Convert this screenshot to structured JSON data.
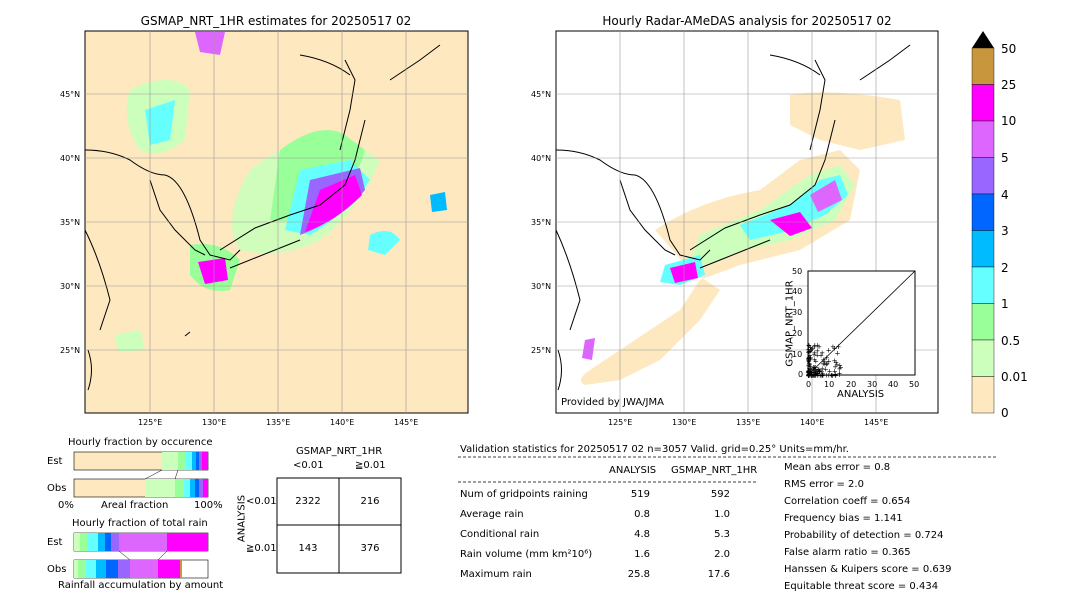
{
  "left_map": {
    "title": "GSMAP_NRT_1HR estimates for 20250517 02",
    "lat_labels": [
      "45°N",
      "40°N",
      "35°N",
      "30°N",
      "25°N"
    ],
    "lon_labels": [
      "125°E",
      "130°E",
      "135°E",
      "140°E",
      "145°E"
    ]
  },
  "right_map": {
    "title": "Hourly Radar-AMeDAS analysis for 20250517 02",
    "lat_labels": [
      "45°N",
      "40°N",
      "35°N",
      "30°N",
      "25°N"
    ],
    "lon_labels": [
      "125°E",
      "130°E",
      "135°E",
      "140°E",
      "145°E"
    ],
    "credit": "Provided by JWA/JMA"
  },
  "colorbar": {
    "labels": [
      "50",
      "25",
      "10",
      "5",
      "4",
      "3",
      "2",
      "1",
      "0.5",
      "0.01",
      "0"
    ],
    "colors": [
      "#c8963c",
      "#ff00ff",
      "#dd66ff",
      "#9966ff",
      "#0066ff",
      "#00bbff",
      "#66ffff",
      "#99ff99",
      "#ccffbb",
      "#fde8c0"
    ]
  },
  "scatter": {
    "ylabel": "GSMAP_NRT_1HR",
    "xlabel": "ANALYSIS",
    "ticks": [
      "0",
      "10",
      "20",
      "30",
      "40",
      "50"
    ]
  },
  "chart_data": [
    {
      "type": "bar",
      "title": "Hourly fraction by occurence",
      "xlabel": "Areal fraction",
      "categories": [
        "Est",
        "Obs"
      ],
      "x_tick_labels": [
        "0%",
        "100%"
      ]
    },
    {
      "type": "bar",
      "title": "Hourly fraction of total rain",
      "xlabel": "Rainfall accumulation by amount",
      "categories": [
        "Est",
        "Obs"
      ]
    },
    {
      "type": "scatter",
      "xlabel": "ANALYSIS",
      "ylabel": "GSMAP_NRT_1HR",
      "xlim": [
        0,
        50
      ],
      "ylim": [
        0,
        50
      ]
    }
  ],
  "contingency": {
    "title": "GSMAP_NRT_1HR",
    "col_labels": [
      "<0.01",
      "≧0.01"
    ],
    "row_axis_label": "ANALYSIS",
    "row_labels": [
      "<0.01",
      "≧0.01"
    ],
    "cells": [
      [
        "2322",
        "216"
      ],
      [
        "143",
        "376"
      ]
    ]
  },
  "validation": {
    "header": "Validation statistics for 20250517 02  n=3057 Valid. grid=0.25° Units=mm/hr.",
    "col_analysis": "ANALYSIS",
    "col_gsmap": "GSMAP_NRT_1HR",
    "rows": [
      {
        "label": "Num of gridpoints raining",
        "a": "519",
        "g": "592"
      },
      {
        "label": "Average rain",
        "a": "0.8",
        "g": "1.0"
      },
      {
        "label": "Conditional rain",
        "a": "4.8",
        "g": "5.3"
      },
      {
        "label": "Rain volume (mm km²10⁶)",
        "a": "1.6",
        "g": "2.0"
      },
      {
        "label": "Maximum rain",
        "a": "25.8",
        "g": "17.6"
      }
    ],
    "scores": [
      "Mean abs error =    0.8",
      "RMS error =    2.0",
      "Correlation coeff =  0.654",
      "Frequency bias =  1.141",
      "Probability of detection =  0.724",
      "False alarm ratio =  0.365",
      "Hanssen & Kuipers score =  0.639",
      "Equitable threat score =  0.434"
    ]
  }
}
